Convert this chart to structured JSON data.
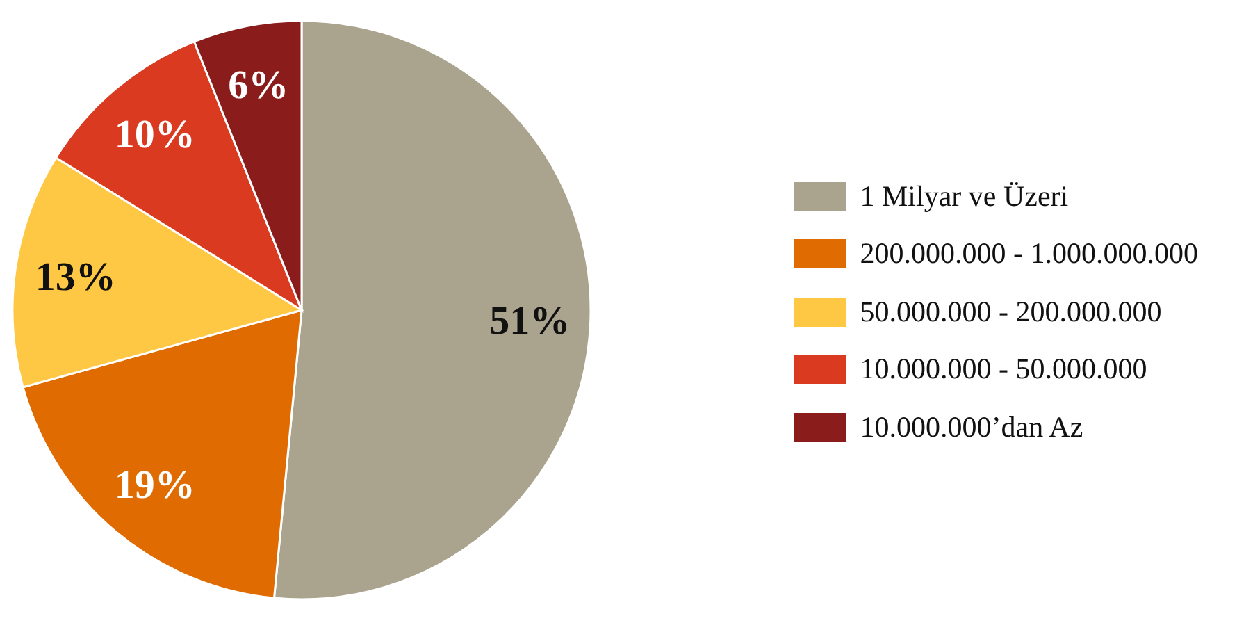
{
  "chart_data": {
    "type": "pie",
    "categories": [
      "1 Milyar ve Üzeri",
      "200.000.000 - 1.000.000.000",
      "50.000.000 - 200.000.000",
      "10.000.000 - 50.000.000",
      "10.000.000’dan Az"
    ],
    "values": [
      51,
      19,
      13,
      10,
      6
    ],
    "colors": [
      "#aaa48f",
      "#e06b00",
      "#fec844",
      "#d93a20",
      "#8a1c1c"
    ],
    "value_labels": [
      "51%",
      "19%",
      "13%",
      "10%",
      "6%"
    ],
    "legend": "right"
  }
}
